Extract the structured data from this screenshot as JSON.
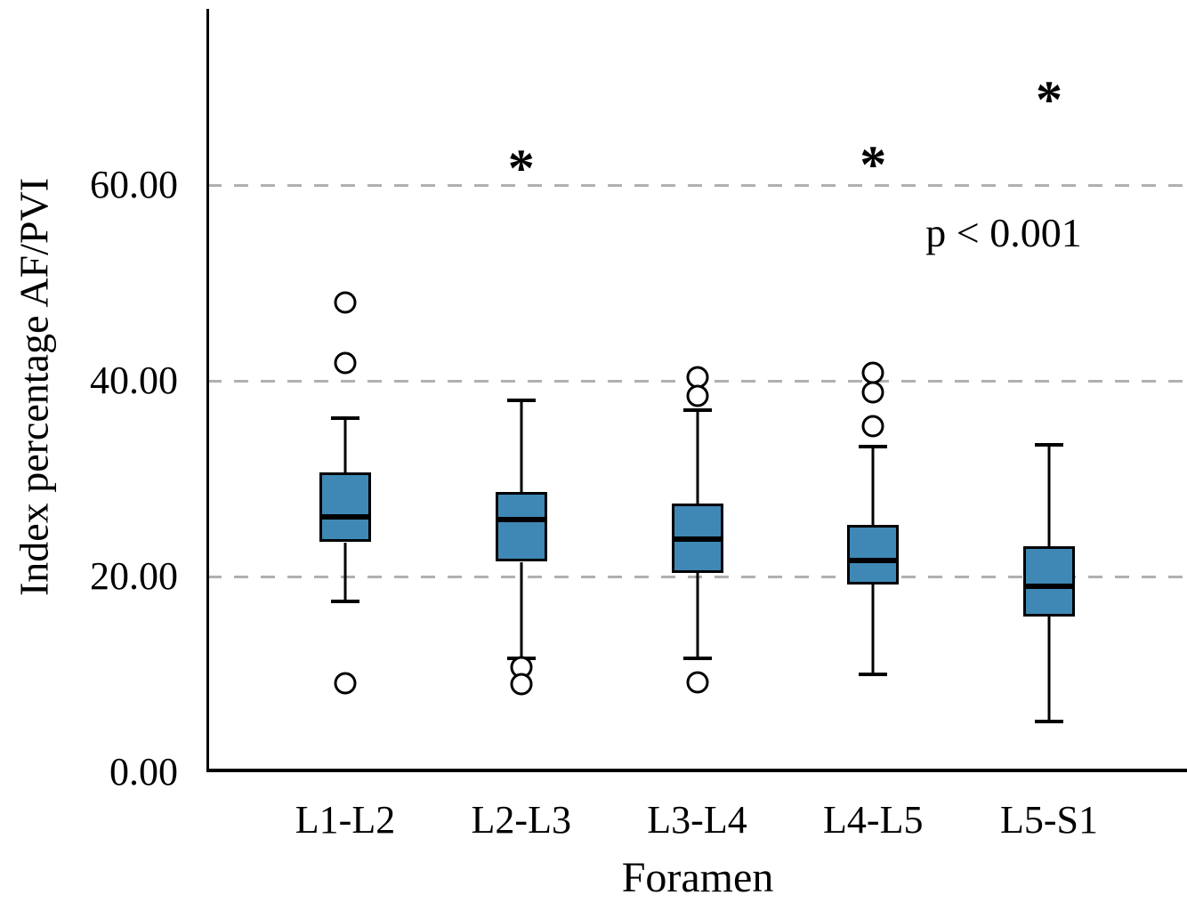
{
  "figure": {
    "background_color": "#ffffff",
    "significance_marker": "*",
    "annotation_text": "p < 0.001"
  },
  "chart_data": {
    "type": "box",
    "title": "",
    "xlabel": "Foramen",
    "ylabel": "Index percentage AF/PVI",
    "categories": [
      "L1-L2",
      "L2-L3",
      "L3-L4",
      "L4-L5",
      "L5-S1"
    ],
    "ylim": [
      0,
      78
    ],
    "yticks": [
      0,
      20,
      40,
      60
    ],
    "ytick_labels": [
      "0.00",
      "20.00",
      "40.00",
      "60.00"
    ],
    "grid": "horizontal dashed gridlines at 20, 40, 60",
    "legend": "none",
    "box_fill_color": "#3f88b5",
    "box_border_color": "#000000",
    "gridline_color": "#b0b0b0",
    "series": [
      {
        "category": "L1-L2",
        "whisker_low": 17.5,
        "q1": 23.5,
        "median": 26.1,
        "q3": 30.6,
        "whisker_high": 36.2,
        "outliers": [
          48.0,
          41.8,
          9.1
        ],
        "significant": false,
        "star_at": null
      },
      {
        "category": "L2-L3",
        "whisker_low": 11.6,
        "q1": 21.5,
        "median": 25.8,
        "q3": 28.6,
        "whisker_high": 38.0,
        "outliers": [
          10.7,
          9.0
        ],
        "significant": true,
        "star_at": 62.5
      },
      {
        "category": "L3-L4",
        "whisker_low": 11.6,
        "q1": 20.4,
        "median": 23.8,
        "q3": 27.5,
        "whisker_high": 37.0,
        "outliers": [
          40.4,
          38.5,
          9.2
        ],
        "significant": false,
        "star_at": null
      },
      {
        "category": "L4-L5",
        "whisker_low": 10.0,
        "q1": 19.2,
        "median": 21.6,
        "q3": 25.3,
        "whisker_high": 33.3,
        "outliers": [
          40.8,
          38.8,
          35.4
        ],
        "significant": true,
        "star_at": 62.8
      },
      {
        "category": "L5-S1",
        "whisker_low": 5.2,
        "q1": 15.9,
        "median": 19.0,
        "q3": 23.1,
        "whisker_high": 33.5,
        "outliers": [],
        "significant": true,
        "star_at": 69.5
      }
    ]
  }
}
